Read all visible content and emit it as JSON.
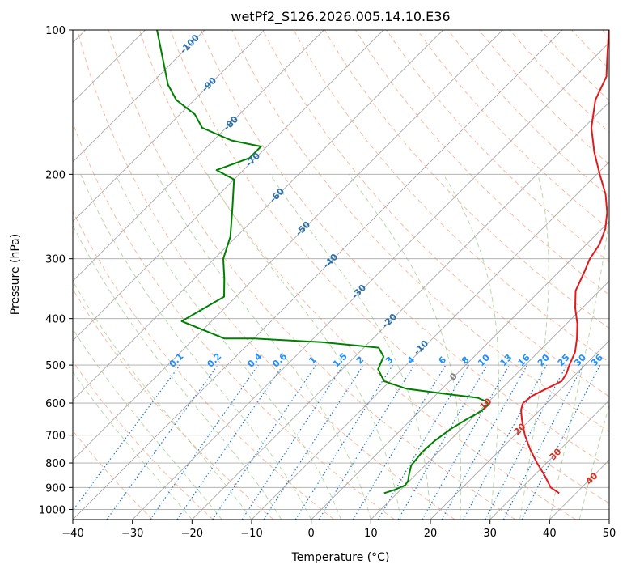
{
  "chart_data": {
    "type": "line",
    "title": "wetPf2_S126.2026.005.14.10.E36",
    "xlabel": "Temperature (°C)",
    "ylabel": "Pressure (hPa)",
    "xlim": [
      -40,
      50
    ],
    "ylim_hpa": [
      1050,
      100
    ],
    "y_scale": "log",
    "skew_degrees": 45,
    "grid": true,
    "x_ticks": [
      -40,
      -30,
      -20,
      -10,
      0,
      10,
      20,
      30,
      40,
      50
    ],
    "y_ticks": [
      100,
      200,
      300,
      400,
      500,
      600,
      700,
      800,
      900,
      1000
    ],
    "colors": {
      "temperature": "#e31a1c",
      "dewpoint": "#008000",
      "dry_adiabat": "#f4a582",
      "moist_adiabat": "#a6d096",
      "mixing_ratio": "#1f78d4",
      "isotherm": "#999999",
      "isobar": "#999999",
      "dry_label": "#d7301f",
      "moist_label": "#2b6fa8",
      "zero_label": "#808080",
      "mixing_label": "#1e90ff"
    },
    "series": [
      {
        "key": "temperature",
        "points": [
          [
            925,
            37.2
          ],
          [
            900,
            34.8
          ],
          [
            850,
            31.8
          ],
          [
            800,
            28.4
          ],
          [
            750,
            25.0
          ],
          [
            700,
            21.7
          ],
          [
            650,
            18.6
          ],
          [
            620,
            16.8
          ],
          [
            600,
            16.0
          ],
          [
            580,
            16.3
          ],
          [
            560,
            17.5
          ],
          [
            540,
            18.8
          ],
          [
            520,
            18.3
          ],
          [
            500,
            17.4
          ],
          [
            470,
            16.2
          ],
          [
            440,
            14.2
          ],
          [
            410,
            11.8
          ],
          [
            380,
            8.8
          ],
          [
            350,
            6.0
          ],
          [
            320,
            4.3
          ],
          [
            300,
            3.0
          ],
          [
            280,
            2.2
          ],
          [
            260,
            0.6
          ],
          [
            240,
            -1.9
          ],
          [
            220,
            -5.2
          ],
          [
            200,
            -9.5
          ],
          [
            180,
            -14.1
          ],
          [
            160,
            -18.7
          ],
          [
            140,
            -22.7
          ],
          [
            125,
            -24.8
          ],
          [
            115,
            -27.6
          ],
          [
            100,
            -32.2
          ]
        ]
      },
      {
        "key": "dewpoint",
        "points": [
          [
            925,
            7.8
          ],
          [
            910,
            9.0
          ],
          [
            890,
            10.0
          ],
          [
            870,
            9.7
          ],
          [
            850,
            9.0
          ],
          [
            810,
            7.7
          ],
          [
            760,
            7.3
          ],
          [
            720,
            7.5
          ],
          [
            680,
            8.2
          ],
          [
            650,
            9.2
          ],
          [
            625,
            10.3
          ],
          [
            605,
            10.5
          ],
          [
            595,
            9.5
          ],
          [
            585,
            7.5
          ],
          [
            575,
            2.0
          ],
          [
            560,
            -6.0
          ],
          [
            540,
            -11.0
          ],
          [
            510,
            -14.0
          ],
          [
            480,
            -15.2
          ],
          [
            460,
            -17.5
          ],
          [
            448,
            -28.0
          ],
          [
            440,
            -40.0
          ],
          [
            440,
            -45.0
          ],
          [
            405,
            -55.0
          ],
          [
            360,
            -52.0
          ],
          [
            330,
            -55.0
          ],
          [
            300,
            -58.5
          ],
          [
            270,
            -61.0
          ],
          [
            235,
            -65.5
          ],
          [
            205,
            -70.0
          ],
          [
            196,
            -74.5
          ],
          [
            185,
            -71.0
          ],
          [
            175,
            -71.0
          ],
          [
            170,
            -77.0
          ],
          [
            160,
            -84.0
          ],
          [
            150,
            -87.5
          ],
          [
            140,
            -93.0
          ],
          [
            130,
            -97.0
          ],
          [
            110,
            -104.0
          ],
          [
            100,
            -108.0
          ]
        ]
      }
    ],
    "dry_adiabat_labels": [
      "10",
      "20",
      "30",
      "40"
    ],
    "moist_adiabat_labels": [
      "-100",
      "-90",
      "-80",
      "-70",
      "-60",
      "-50",
      "-40",
      "-30",
      "-20",
      "-10",
      "0"
    ],
    "mixing_ratio_labels": [
      "0.1",
      "0.2",
      "0.4",
      "0.6",
      "1",
      "1.5",
      "2",
      "3",
      "4",
      "6",
      "8",
      "10",
      "13",
      "16",
      "20",
      "25",
      "30",
      "36"
    ],
    "mixing_ratio_values": [
      0.1,
      0.2,
      0.4,
      0.6,
      1,
      1.5,
      2,
      3,
      4,
      6,
      8,
      10,
      13,
      16,
      20,
      25,
      30,
      36
    ]
  }
}
